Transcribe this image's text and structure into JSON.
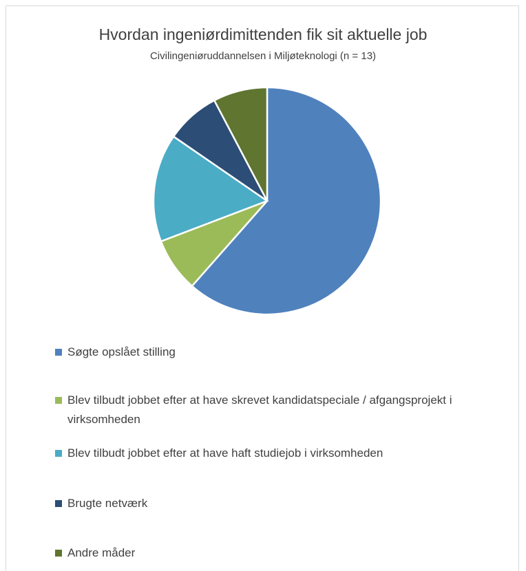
{
  "chart_data": {
    "type": "pie",
    "title": "Hvordan ingeniørdimittenden fik sit aktuelle job",
    "subtitle": "Civilingeniøruddannelsen i Miljøteknologi (n = 13)",
    "categories": [
      "Søgte opslået stilling",
      "Blev tilbudt jobbet efter at have skrevet kandidatspeciale / afgangsprojekt i virksomheden",
      "Blev tilbudt jobbet efter at have haft studiejob i virksomheden",
      "Brugte netværk",
      "Andre måder"
    ],
    "values": [
      61.5,
      7.7,
      15.4,
      7.7,
      7.7
    ],
    "colors": [
      "#4f81bd",
      "#9bbb59",
      "#4bacc6",
      "#2c4d75",
      "#5f7530"
    ],
    "legend": "bottom"
  }
}
